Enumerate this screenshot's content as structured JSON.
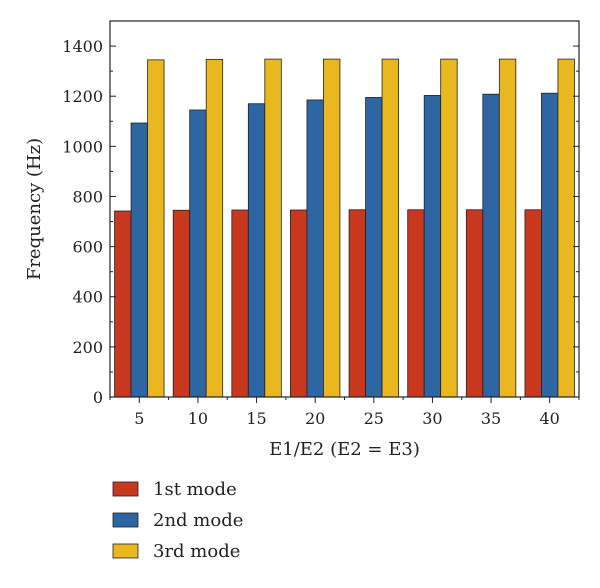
{
  "chart_data": {
    "type": "bar",
    "categories": [
      "5",
      "10",
      "15",
      "20",
      "25",
      "30",
      "35",
      "40"
    ],
    "series": [
      {
        "name": "1st mode",
        "color": "#c8381e",
        "values": [
          742,
          745,
          746,
          746,
          747,
          747,
          747,
          747
        ]
      },
      {
        "name": "2nd mode",
        "color": "#2e65a3",
        "values": [
          1093,
          1145,
          1170,
          1185,
          1195,
          1203,
          1208,
          1212
        ]
      },
      {
        "name": "3rd mode",
        "color": "#e9b820",
        "values": [
          1345,
          1347,
          1348,
          1348,
          1348,
          1348,
          1348,
          1348
        ]
      }
    ],
    "title": "",
    "xlabel": "E1/E2 (E2 = E3)",
    "ylabel": "Frequency (Hz)",
    "ylim": [
      0,
      1500
    ],
    "yticks": [
      0,
      200,
      400,
      600,
      800,
      1000,
      1200,
      1400
    ],
    "grid": false,
    "legend_position": "bottom-left"
  }
}
